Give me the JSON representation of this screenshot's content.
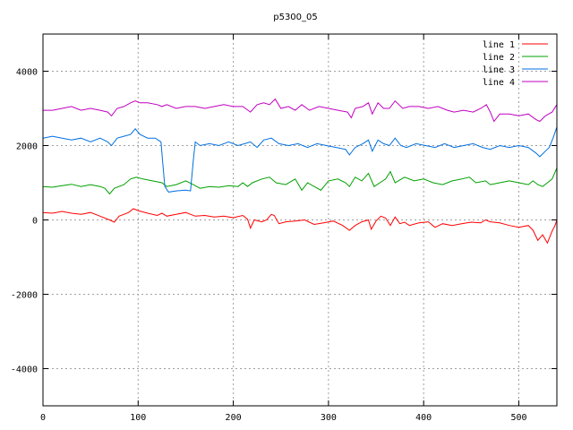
{
  "chart_data": {
    "type": "line",
    "title": "p5300_05",
    "xlabel": "",
    "ylabel": "",
    "xlim": [
      0,
      540
    ],
    "ylim": [
      -5000,
      5000
    ],
    "xticks": [
      0,
      100,
      200,
      300,
      400,
      500
    ],
    "yticks": [
      -4000,
      -2000,
      0,
      2000,
      4000
    ],
    "grid": true,
    "legend_position": "top-right",
    "series": [
      {
        "name": "line 1",
        "color": "#ff0000",
        "points": [
          [
            0,
            200
          ],
          [
            10,
            180
          ],
          [
            20,
            230
          ],
          [
            30,
            180
          ],
          [
            40,
            150
          ],
          [
            50,
            200
          ],
          [
            60,
            100
          ],
          [
            70,
            0
          ],
          [
            75,
            -60
          ],
          [
            80,
            100
          ],
          [
            90,
            200
          ],
          [
            95,
            300
          ],
          [
            100,
            250
          ],
          [
            110,
            180
          ],
          [
            120,
            120
          ],
          [
            125,
            180
          ],
          [
            130,
            100
          ],
          [
            140,
            150
          ],
          [
            150,
            200
          ],
          [
            160,
            100
          ],
          [
            170,
            120
          ],
          [
            180,
            80
          ],
          [
            190,
            100
          ],
          [
            200,
            60
          ],
          [
            210,
            120
          ],
          [
            215,
            20
          ],
          [
            218,
            -220
          ],
          [
            222,
            0
          ],
          [
            230,
            -50
          ],
          [
            235,
            0
          ],
          [
            240,
            150
          ],
          [
            243,
            120
          ],
          [
            248,
            -100
          ],
          [
            255,
            -50
          ],
          [
            265,
            -30
          ],
          [
            275,
            0
          ],
          [
            285,
            -120
          ],
          [
            295,
            -80
          ],
          [
            305,
            -30
          ],
          [
            315,
            -150
          ],
          [
            322,
            -280
          ],
          [
            328,
            -150
          ],
          [
            335,
            -50
          ],
          [
            342,
            0
          ],
          [
            345,
            -250
          ],
          [
            350,
            -30
          ],
          [
            355,
            100
          ],
          [
            360,
            50
          ],
          [
            365,
            -150
          ],
          [
            370,
            80
          ],
          [
            375,
            -100
          ],
          [
            380,
            -60
          ],
          [
            385,
            -150
          ],
          [
            395,
            -80
          ],
          [
            405,
            -50
          ],
          [
            412,
            -200
          ],
          [
            420,
            -100
          ],
          [
            430,
            -150
          ],
          [
            440,
            -100
          ],
          [
            450,
            -60
          ],
          [
            460,
            -80
          ],
          [
            465,
            0
          ],
          [
            470,
            -50
          ],
          [
            480,
            -80
          ],
          [
            490,
            -150
          ],
          [
            500,
            -200
          ],
          [
            510,
            -150
          ],
          [
            515,
            -280
          ],
          [
            520,
            -550
          ],
          [
            525,
            -400
          ],
          [
            530,
            -620
          ],
          [
            535,
            -300
          ],
          [
            538,
            -150
          ],
          [
            540,
            0
          ]
        ]
      },
      {
        "name": "line 2",
        "color": "#00a000",
        "points": [
          [
            0,
            900
          ],
          [
            10,
            880
          ],
          [
            20,
            920
          ],
          [
            30,
            960
          ],
          [
            40,
            900
          ],
          [
            50,
            950
          ],
          [
            60,
            900
          ],
          [
            65,
            850
          ],
          [
            70,
            700
          ],
          [
            75,
            850
          ],
          [
            85,
            950
          ],
          [
            92,
            1100
          ],
          [
            98,
            1150
          ],
          [
            105,
            1100
          ],
          [
            115,
            1050
          ],
          [
            125,
            1000
          ],
          [
            130,
            900
          ],
          [
            140,
            950
          ],
          [
            150,
            1050
          ],
          [
            158,
            950
          ],
          [
            165,
            850
          ],
          [
            175,
            900
          ],
          [
            185,
            880
          ],
          [
            195,
            920
          ],
          [
            205,
            900
          ],
          [
            210,
            1000
          ],
          [
            215,
            900
          ],
          [
            220,
            1000
          ],
          [
            230,
            1100
          ],
          [
            238,
            1150
          ],
          [
            245,
            1000
          ],
          [
            255,
            950
          ],
          [
            265,
            1100
          ],
          [
            272,
            800
          ],
          [
            278,
            1000
          ],
          [
            285,
            900
          ],
          [
            292,
            800
          ],
          [
            300,
            1050
          ],
          [
            310,
            1100
          ],
          [
            318,
            1000
          ],
          [
            322,
            900
          ],
          [
            328,
            1150
          ],
          [
            335,
            1050
          ],
          [
            342,
            1250
          ],
          [
            348,
            900
          ],
          [
            354,
            1000
          ],
          [
            360,
            1100
          ],
          [
            365,
            1300
          ],
          [
            370,
            1000
          ],
          [
            380,
            1150
          ],
          [
            390,
            1050
          ],
          [
            400,
            1100
          ],
          [
            410,
            1000
          ],
          [
            420,
            950
          ],
          [
            430,
            1050
          ],
          [
            440,
            1100
          ],
          [
            448,
            1150
          ],
          [
            455,
            1000
          ],
          [
            465,
            1050
          ],
          [
            470,
            950
          ],
          [
            480,
            1000
          ],
          [
            490,
            1050
          ],
          [
            500,
            1000
          ],
          [
            510,
            950
          ],
          [
            515,
            1050
          ],
          [
            520,
            950
          ],
          [
            525,
            900
          ],
          [
            530,
            1000
          ],
          [
            535,
            1100
          ],
          [
            540,
            1400
          ]
        ]
      },
      {
        "name": "line 3",
        "color": "#0070e0",
        "points": [
          [
            0,
            2200
          ],
          [
            10,
            2250
          ],
          [
            20,
            2200
          ],
          [
            30,
            2150
          ],
          [
            40,
            2200
          ],
          [
            50,
            2100
          ],
          [
            60,
            2200
          ],
          [
            68,
            2100
          ],
          [
            72,
            2000
          ],
          [
            78,
            2200
          ],
          [
            85,
            2250
          ],
          [
            92,
            2300
          ],
          [
            97,
            2450
          ],
          [
            102,
            2300
          ],
          [
            110,
            2200
          ],
          [
            118,
            2200
          ],
          [
            124,
            2100
          ],
          [
            126,
            1500
          ],
          [
            128,
            900
          ],
          [
            132,
            750
          ],
          [
            140,
            780
          ],
          [
            150,
            800
          ],
          [
            155,
            780
          ],
          [
            158,
            1600
          ],
          [
            160,
            2100
          ],
          [
            165,
            2000
          ],
          [
            175,
            2050
          ],
          [
            185,
            2000
          ],
          [
            195,
            2100
          ],
          [
            205,
            2000
          ],
          [
            212,
            2050
          ],
          [
            218,
            2100
          ],
          [
            225,
            1950
          ],
          [
            232,
            2150
          ],
          [
            240,
            2200
          ],
          [
            248,
            2050
          ],
          [
            258,
            2000
          ],
          [
            268,
            2050
          ],
          [
            278,
            1950
          ],
          [
            288,
            2050
          ],
          [
            298,
            2000
          ],
          [
            308,
            1950
          ],
          [
            318,
            1900
          ],
          [
            322,
            1750
          ],
          [
            328,
            1950
          ],
          [
            336,
            2050
          ],
          [
            342,
            2150
          ],
          [
            346,
            1850
          ],
          [
            352,
            2150
          ],
          [
            358,
            2050
          ],
          [
            364,
            2000
          ],
          [
            370,
            2200
          ],
          [
            376,
            2000
          ],
          [
            382,
            1950
          ],
          [
            392,
            2050
          ],
          [
            402,
            2000
          ],
          [
            412,
            1950
          ],
          [
            422,
            2050
          ],
          [
            432,
            1950
          ],
          [
            442,
            2000
          ],
          [
            452,
            2050
          ],
          [
            462,
            1950
          ],
          [
            470,
            1900
          ],
          [
            480,
            2000
          ],
          [
            490,
            1950
          ],
          [
            500,
            2000
          ],
          [
            510,
            1950
          ],
          [
            518,
            1800
          ],
          [
            522,
            1700
          ],
          [
            528,
            1850
          ],
          [
            532,
            1950
          ],
          [
            536,
            2200
          ],
          [
            540,
            2500
          ]
        ]
      },
      {
        "name": "line 4",
        "color": "#c000c0",
        "points": [
          [
            0,
            2950
          ],
          [
            10,
            2950
          ],
          [
            20,
            3000
          ],
          [
            30,
            3050
          ],
          [
            40,
            2950
          ],
          [
            50,
            3000
          ],
          [
            60,
            2950
          ],
          [
            68,
            2900
          ],
          [
            72,
            2800
          ],
          [
            78,
            3000
          ],
          [
            85,
            3050
          ],
          [
            92,
            3150
          ],
          [
            97,
            3200
          ],
          [
            102,
            3150
          ],
          [
            110,
            3150
          ],
          [
            120,
            3100
          ],
          [
            125,
            3050
          ],
          [
            130,
            3100
          ],
          [
            140,
            3000
          ],
          [
            150,
            3050
          ],
          [
            160,
            3050
          ],
          [
            170,
            3000
          ],
          [
            180,
            3050
          ],
          [
            190,
            3100
          ],
          [
            200,
            3050
          ],
          [
            210,
            3050
          ],
          [
            218,
            2900
          ],
          [
            225,
            3100
          ],
          [
            232,
            3150
          ],
          [
            238,
            3100
          ],
          [
            244,
            3250
          ],
          [
            250,
            3000
          ],
          [
            258,
            3050
          ],
          [
            265,
            2950
          ],
          [
            272,
            3100
          ],
          [
            280,
            2950
          ],
          [
            290,
            3050
          ],
          [
            300,
            3000
          ],
          [
            310,
            2950
          ],
          [
            320,
            2900
          ],
          [
            324,
            2750
          ],
          [
            328,
            3000
          ],
          [
            336,
            3050
          ],
          [
            342,
            3150
          ],
          [
            346,
            2850
          ],
          [
            352,
            3150
          ],
          [
            358,
            3000
          ],
          [
            364,
            3000
          ],
          [
            370,
            3200
          ],
          [
            378,
            3000
          ],
          [
            385,
            3050
          ],
          [
            395,
            3050
          ],
          [
            405,
            3000
          ],
          [
            415,
            3050
          ],
          [
            425,
            2950
          ],
          [
            432,
            2900
          ],
          [
            442,
            2950
          ],
          [
            452,
            2900
          ],
          [
            460,
            3000
          ],
          [
            466,
            3100
          ],
          [
            470,
            2900
          ],
          [
            474,
            2650
          ],
          [
            480,
            2850
          ],
          [
            490,
            2850
          ],
          [
            500,
            2800
          ],
          [
            510,
            2850
          ],
          [
            518,
            2700
          ],
          [
            522,
            2650
          ],
          [
            528,
            2800
          ],
          [
            535,
            2900
          ],
          [
            540,
            3100
          ]
        ]
      }
    ]
  }
}
